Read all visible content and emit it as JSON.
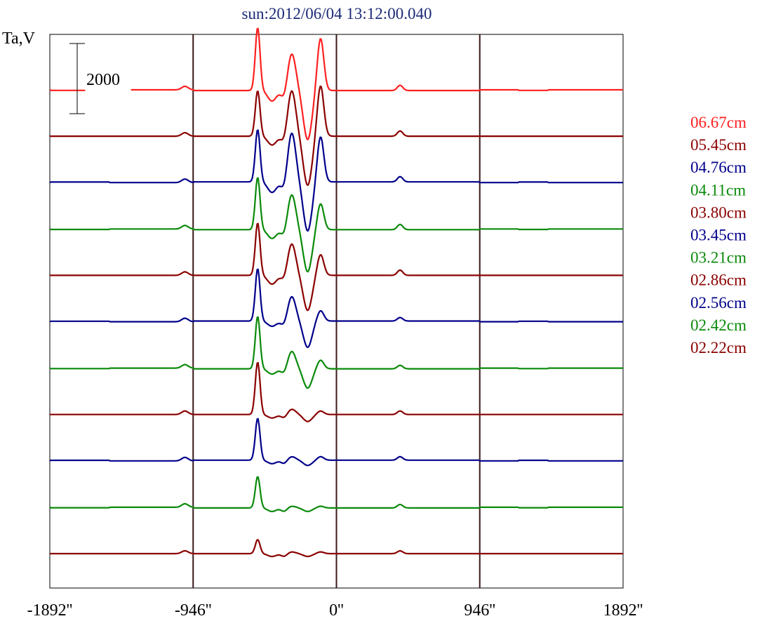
{
  "chart_data": {
    "type": "line",
    "title": "sun:2012/06/04 13:12:00.040",
    "ylabel": "Ta,V",
    "scale_bar_label": "2000",
    "xlim": [
      -1892,
      1892
    ],
    "x_ticks": [
      -1892,
      -946,
      0,
      946,
      1892
    ],
    "x_tick_labels": [
      "-1892''",
      "-946''",
      "0''",
      "946''",
      "1892''"
    ],
    "vertical_markers": [
      -946,
      0,
      946
    ],
    "colors": {
      "red": "#ff2020",
      "darkred": "#8b0000",
      "navy": "#00008b",
      "green": "#0a8a0a",
      "title": "#1c2a78",
      "frame": "#000000",
      "marker": "#3a1a1a"
    },
    "series": [
      {
        "name": "06.67cm",
        "color": "#ff2020",
        "amplitudes": [
          1800,
          1050,
          -1400,
          1500,
          -300,
          -250,
          150,
          100
        ],
        "break_at_label": true
      },
      {
        "name": "05.45cm",
        "color": "#8b0000",
        "amplitudes": [
          1300,
          1300,
          -1400,
          1450,
          -250,
          -200,
          150,
          100
        ]
      },
      {
        "name": "04.76cm",
        "color": "#00008b",
        "amplitudes": [
          1500,
          1400,
          -1400,
          1300,
          -300,
          -250,
          150,
          100
        ]
      },
      {
        "name": "04.11cm",
        "color": "#0a8a0a",
        "amplitudes": [
          1500,
          1000,
          -1200,
          750,
          -250,
          -200,
          150,
          100
        ]
      },
      {
        "name": "03.80cm",
        "color": "#8b0000",
        "amplitudes": [
          1500,
          900,
          -1000,
          600,
          -250,
          -150,
          150,
          100
        ]
      },
      {
        "name": "03.45cm",
        "color": "#00008b",
        "amplitudes": [
          1500,
          700,
          -750,
          300,
          -150,
          -150,
          100,
          100
        ]
      },
      {
        "name": "03.21cm",
        "color": "#0a8a0a",
        "amplitudes": [
          1500,
          500,
          -550,
          250,
          -150,
          -150,
          100,
          100
        ]
      },
      {
        "name": "02.86cm",
        "color": "#8b0000",
        "amplitudes": [
          1500,
          150,
          -200,
          100,
          -100,
          -100,
          100,
          100
        ]
      },
      {
        "name": "02.56cm",
        "color": "#00008b",
        "amplitudes": [
          1200,
          100,
          -150,
          100,
          -100,
          -100,
          100,
          100
        ]
      },
      {
        "name": "02.42cm",
        "color": "#0a8a0a",
        "amplitudes": [
          900,
          50,
          -100,
          50,
          -100,
          -100,
          100,
          100
        ]
      },
      {
        "name": "02.22cm",
        "color": "#8b0000",
        "amplitudes": [
          400,
          50,
          -80,
          50,
          -80,
          -80,
          80,
          80
        ]
      }
    ]
  }
}
